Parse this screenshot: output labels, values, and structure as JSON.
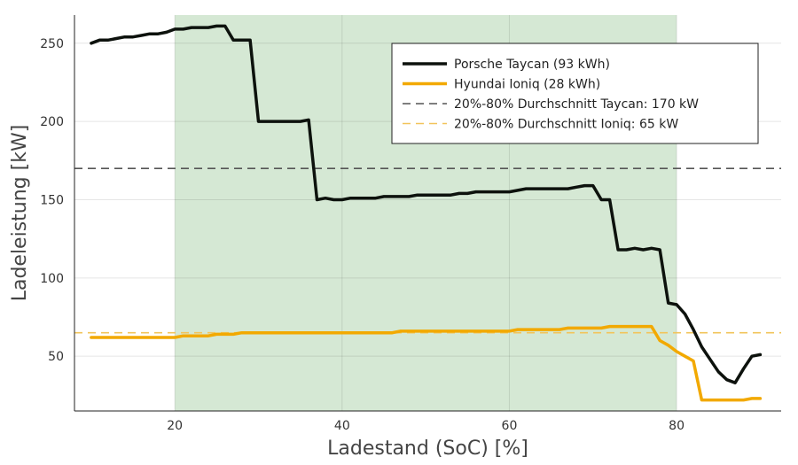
{
  "chart_data": {
    "type": "line",
    "xlabel": "Ladestand (SoC) [%]",
    "ylabel": "Ladeleistung [kW]",
    "xlim": [
      8,
      92.5
    ],
    "ylim": [
      15,
      268
    ],
    "xticks": [
      20,
      40,
      60,
      80
    ],
    "yticks": [
      50,
      100,
      150,
      200,
      250
    ],
    "grid": true,
    "legend_position": "top-right",
    "shaded_region": {
      "x": [
        20,
        80
      ],
      "color": "#d5e8d4"
    },
    "series": [
      {
        "name": "Porsche Taycan (93 kWh)",
        "color": "#0d120d",
        "style": "solid",
        "x": [
          10,
          11,
          12,
          13,
          14,
          15,
          16,
          17,
          18,
          19,
          20,
          21,
          22,
          23,
          24,
          25,
          26,
          27,
          28,
          29,
          30,
          31,
          32,
          33,
          34,
          35,
          36,
          37,
          38,
          39,
          40,
          41,
          42,
          43,
          44,
          45,
          46,
          47,
          48,
          49,
          50,
          51,
          52,
          53,
          54,
          55,
          56,
          57,
          58,
          59,
          60,
          61,
          62,
          63,
          64,
          65,
          66,
          67,
          68,
          69,
          70,
          71,
          72,
          73,
          74,
          75,
          76,
          77,
          78,
          79,
          80,
          81,
          82,
          83,
          84,
          85,
          86,
          87,
          88,
          89,
          90
        ],
        "values": [
          250,
          252,
          252,
          253,
          254,
          254,
          255,
          256,
          256,
          257,
          259,
          259,
          260,
          260,
          260,
          261,
          261,
          252,
          252,
          252,
          200,
          200,
          200,
          200,
          200,
          200,
          201,
          150,
          151,
          150,
          150,
          151,
          151,
          151,
          151,
          152,
          152,
          152,
          152,
          153,
          153,
          153,
          153,
          153,
          154,
          154,
          155,
          155,
          155,
          155,
          155,
          156,
          157,
          157,
          157,
          157,
          157,
          157,
          158,
          159,
          159,
          150,
          150,
          118,
          118,
          119,
          118,
          119,
          118,
          84,
          83,
          77,
          67,
          56,
          48,
          40,
          35,
          33,
          42,
          50,
          51
        ]
      },
      {
        "name": "Hyundai Ioniq (28 kWh)",
        "color": "#f2a900",
        "style": "solid",
        "x": [
          10,
          11,
          12,
          13,
          14,
          15,
          16,
          17,
          18,
          19,
          20,
          21,
          22,
          23,
          24,
          25,
          26,
          27,
          28,
          29,
          30,
          31,
          32,
          33,
          34,
          35,
          36,
          37,
          38,
          39,
          40,
          41,
          42,
          43,
          44,
          45,
          46,
          47,
          48,
          49,
          50,
          51,
          52,
          53,
          54,
          55,
          56,
          57,
          58,
          59,
          60,
          61,
          62,
          63,
          64,
          65,
          66,
          67,
          68,
          69,
          70,
          71,
          72,
          73,
          74,
          75,
          76,
          77,
          78,
          79,
          80,
          81,
          82,
          83,
          84,
          85,
          86,
          87,
          88,
          89,
          90
        ],
        "values": [
          62,
          62,
          62,
          62,
          62,
          62,
          62,
          62,
          62,
          62,
          62,
          63,
          63,
          63,
          63,
          64,
          64,
          64,
          65,
          65,
          65,
          65,
          65,
          65,
          65,
          65,
          65,
          65,
          65,
          65,
          65,
          65,
          65,
          65,
          65,
          65,
          65,
          66,
          66,
          66,
          66,
          66,
          66,
          66,
          66,
          66,
          66,
          66,
          66,
          66,
          66,
          67,
          67,
          67,
          67,
          67,
          67,
          68,
          68,
          68,
          68,
          68,
          69,
          69,
          69,
          69,
          69,
          69,
          60,
          57,
          53,
          50,
          47,
          22,
          22,
          22,
          22,
          22,
          22,
          23,
          23
        ]
      },
      {
        "name": "20%-80% Durchschnitt Taycan: 170 kW",
        "color": "#555555",
        "style": "dashed",
        "hline": 170
      },
      {
        "name": "20%-80% Durchschnitt Ioniq: 65 kW",
        "color": "#f2c45a",
        "style": "dashed",
        "hline": 65
      }
    ]
  }
}
